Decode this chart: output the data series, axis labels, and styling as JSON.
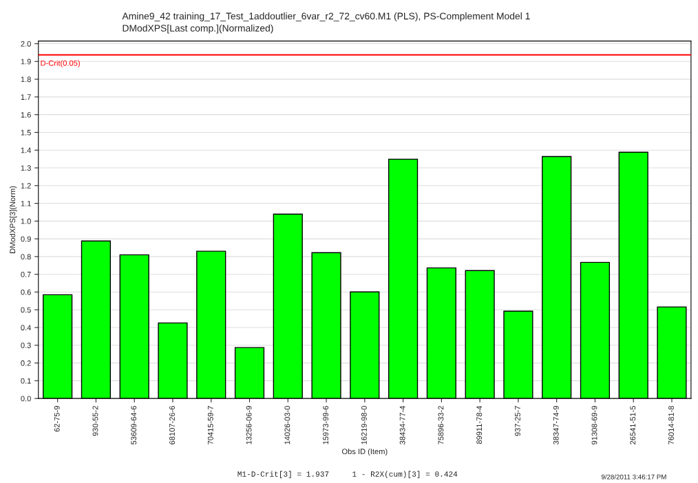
{
  "chart_data": {
    "type": "bar",
    "title": "Amine9_42 training_17_Test_1addoutlier_6var_r2_72_cv60.M1 (PLS), PS-Complement Model 1",
    "subtitle": "DModXPS[Last comp.](Normalized)",
    "xlabel": "Obs ID (Item)",
    "ylabel": "DModXPS[3](Norm)",
    "categories": [
      "62-75-9",
      "930-55-2",
      "53609-64-6",
      "68107-26-6",
      "70415-59-7",
      "13256-06-9",
      "14026-03-0",
      "15973-99-6",
      "16219-98-0",
      "38434-77-4",
      "75896-33-2",
      "89911-78-4",
      "937-25-7",
      "38347-74-9",
      "91308-69-9",
      "26541-51-5",
      "76014-81-8"
    ],
    "values": [
      0.585,
      0.888,
      0.81,
      0.426,
      0.83,
      0.287,
      1.039,
      0.822,
      0.601,
      1.349,
      0.736,
      0.721,
      0.492,
      1.364,
      0.767,
      1.388,
      0.516
    ],
    "color": "#00ff00",
    "ylim": [
      0,
      2.015
    ],
    "yticks": [
      {
        "value": 0,
        "label": "0.0"
      },
      0.1,
      0.2,
      0.3,
      0.4,
      0.5,
      0.6,
      0.7,
      0.8,
      0.9,
      {
        "value": 1,
        "label": "1.0"
      },
      1.1,
      1.2,
      1.3,
      1.4,
      1.5,
      1.6,
      1.7,
      1.8,
      1.9,
      {
        "value": 2,
        "label": "2.0"
      }
    ],
    "grid": "y",
    "ref_lines": [
      {
        "axis": "y",
        "value": 1.937,
        "label": "D-Crit(0.05)",
        "color": "#ff0000"
      }
    ],
    "annotations": [
      "M1-D-Crit[3] = 1.937     1 - R2X(cum)[3] = 0.424",
      "9/28/2011 3:46:17 PM"
    ]
  }
}
